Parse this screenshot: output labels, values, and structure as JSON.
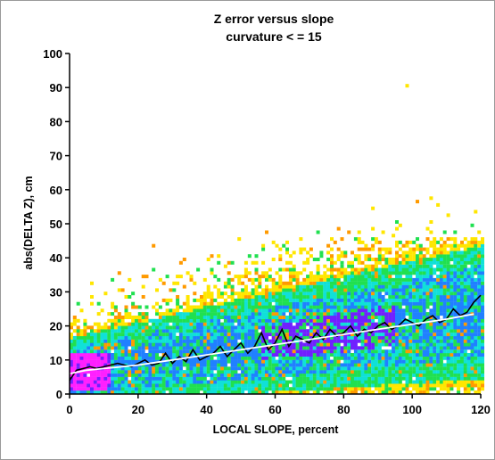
{
  "chart_data": {
    "type": "heatmap",
    "title": "Z error versus slope",
    "subtitle": "curvature < = 15",
    "xlabel": "LOCAL SLOPE, percent",
    "ylabel": "abs(DELTA Z), cm",
    "xlim": [
      0,
      120
    ],
    "ylim": [
      0,
      100
    ],
    "x_ticks": [
      "0",
      "20",
      "40",
      "60",
      "80",
      "100",
      "120"
    ],
    "y_ticks": [
      "0",
      "10",
      "20",
      "30",
      "40",
      "50",
      "60",
      "70",
      "80",
      "90",
      "100"
    ],
    "colors": {
      "sparse": "#ffe600",
      "low": "#ff9a00",
      "medium": "#20e050",
      "high": "#10e0d8",
      "higher": "#2080ff",
      "highest": "#7020ff",
      "peak": "#ff20ff",
      "contour": "#000000"
    },
    "series": [
      {
        "name": "",
        "color": "#000000",
        "x": [
          0,
          2,
          4,
          6,
          8,
          10,
          12,
          14,
          16,
          18,
          20,
          22,
          24,
          26,
          28,
          30,
          32,
          34,
          36,
          38,
          40,
          42,
          44,
          46,
          48,
          50,
          52,
          54,
          56,
          58,
          60,
          62,
          64,
          66,
          68,
          70,
          72,
          74,
          76,
          78,
          80,
          82,
          84,
          86,
          88,
          90,
          92,
          94,
          96,
          98,
          100,
          102,
          104,
          106,
          108,
          110,
          112,
          114,
          116,
          118,
          120
        ],
        "values": [
          4,
          7,
          7.5,
          8,
          7.5,
          8,
          8.5,
          9,
          8.5,
          8,
          9,
          10,
          8.5,
          9,
          12,
          9,
          11,
          9.5,
          13,
          10,
          11,
          12,
          14,
          11,
          13,
          15,
          12,
          14,
          18,
          13,
          15,
          19,
          14,
          17,
          16,
          15,
          18,
          16,
          19,
          17,
          18,
          20,
          17,
          19,
          18,
          20,
          21,
          19,
          20,
          22,
          21,
          20,
          22,
          23,
          21,
          22,
          25,
          23,
          24,
          27,
          29
        ]
      },
      {
        "name": "",
        "color": "#ffffff",
        "x": [
          0,
          5,
          10,
          20,
          30,
          40,
          50,
          60,
          70,
          80,
          90,
          100,
          110,
          118
        ],
        "values": [
          6,
          7,
          7.5,
          8.5,
          10,
          11.5,
          13,
          14.5,
          16,
          17.5,
          19,
          20.5,
          22,
          23.5
        ]
      }
    ]
  }
}
